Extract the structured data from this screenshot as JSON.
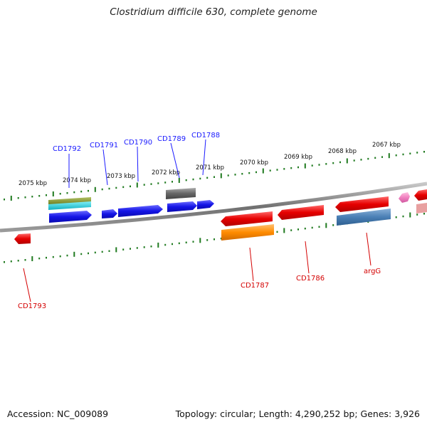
{
  "title": "Clostridium difficile 630, complete genome",
  "footer": {
    "accession": "Accession: NC_009089",
    "summary": "Topology: circular; Length: 4,290,252 bp; Genes: 3,926"
  },
  "scale_labels": [
    "2075 kbp",
    "2074 kbp",
    "2073 kbp",
    "2072 kbp",
    "2071 kbp",
    "2070 kbp",
    "2069 kbp",
    "2068 kbp",
    "2067 kbp"
  ],
  "gene_labels_top": [
    "CD1792",
    "CD1791",
    "CD1790",
    "CD1789",
    "CD1788"
  ],
  "gene_labels_bottom": [
    "CD1793",
    "CD1787",
    "CD1786",
    "argG"
  ],
  "colors": {
    "forward_gene": "#1414e6",
    "reverse_gene": "#e60000",
    "tick": "#1f7a1f",
    "axis": "#8a8a8a",
    "gray_feature": "#666666",
    "orange_feature": "#ff8c00",
    "steelblue_feature": "#4a7fb5",
    "pink_feature": "#f080c0",
    "olive_feature": "#7a8c2a",
    "cyan_feature": "#20c8d8"
  }
}
